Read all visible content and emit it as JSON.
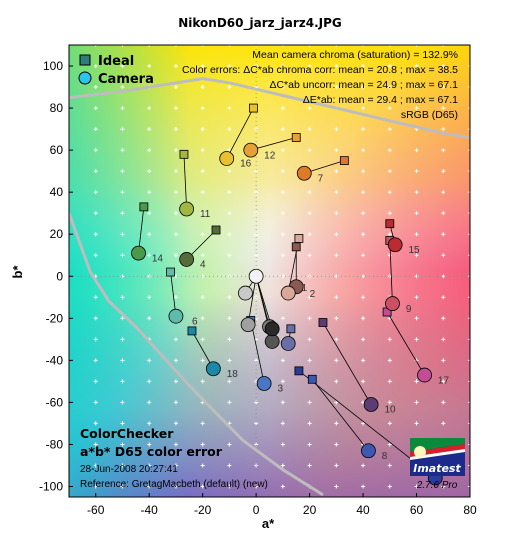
{
  "window_title": "NikonD60_jarz_jarz4.JPG",
  "info_lines": [
    "Mean camera chroma (saturation) = 132.9%",
    "Color errors:  ΔC*ab chroma corr:  mean = 20.8 ;  max = 38.5",
    "ΔC*ab uncorr:  mean = 24.9 ;  max = 67.1",
    "ΔE*ab:  mean = 29.4 ;  max = 67.1",
    "sRGB (D65)"
  ],
  "legend": {
    "ideal": "Ideal",
    "camera": "Camera"
  },
  "bottom_text": {
    "title1": "ColorChecker",
    "title2": "a*b* D65 color error",
    "date": "28-Jun-2008 20:27:41",
    "reference": "Reference: GretagMacbeth (default) (new)"
  },
  "logo": {
    "brand": "Imatest",
    "version": "2.7.6  Pro"
  },
  "colors": {
    "ideal_marker": "#2e7d7a",
    "camera_marker": "#29c4f0",
    "gamut_line": "#bdbdbd",
    "plus_marks": "#ffffff"
  },
  "chart_data": {
    "type": "scatter",
    "title": "NikonD60_jarz_jarz4.JPG",
    "xlabel": "a*",
    "ylabel": "b*",
    "xlim": [
      -70,
      80
    ],
    "ylim": [
      -105,
      110
    ],
    "xticks": [
      -60,
      -40,
      -20,
      0,
      20,
      40,
      60,
      80
    ],
    "yticks": [
      -100,
      -80,
      -60,
      -40,
      -20,
      0,
      20,
      40,
      60,
      80,
      100
    ],
    "grid": true,
    "legend_position": "top-left",
    "series": [
      {
        "name": "Ideal",
        "marker": "square"
      },
      {
        "name": "Camera",
        "marker": "circle"
      }
    ],
    "points": [
      {
        "id": 1,
        "ideal": [
          15,
          14
        ],
        "camera": [
          15,
          -5
        ],
        "color": "#8a5a52"
      },
      {
        "id": 2,
        "ideal": [
          16,
          18
        ],
        "camera": [
          12,
          -8
        ],
        "color": "#d8a898"
      },
      {
        "id": 3,
        "ideal": [
          -2,
          -21
        ],
        "camera": [
          3,
          -51
        ],
        "color": "#4a76c4"
      },
      {
        "id": 4,
        "ideal": [
          -15,
          22
        ],
        "camera": [
          -26,
          8
        ],
        "color": "#566b3a"
      },
      {
        "id": 5,
        "ideal": [
          13,
          -25
        ],
        "camera": [
          12,
          -32
        ],
        "color": "#6a6ea6"
      },
      {
        "id": 6,
        "ideal": [
          -32,
          2
        ],
        "camera": [
          -30,
          -19
        ],
        "color": "#5fbcaa"
      },
      {
        "id": 7,
        "ideal": [
          33,
          55
        ],
        "camera": [
          18,
          49
        ],
        "color": "#dc7a28"
      },
      {
        "id": 8,
        "ideal": [
          21,
          -49
        ],
        "camera": [
          42,
          -83
        ],
        "color": "#3e58b0"
      },
      {
        "id": 9,
        "ideal": [
          50,
          17
        ],
        "camera": [
          51,
          -13
        ],
        "color": "#cc5064"
      },
      {
        "id": 10,
        "ideal": [
          25,
          -22
        ],
        "camera": [
          43,
          -61
        ],
        "color": "#5e3c72"
      },
      {
        "id": 11,
        "ideal": [
          -27,
          58
        ],
        "camera": [
          -26,
          32
        ],
        "color": "#a2b642"
      },
      {
        "id": 12,
        "ideal": [
          15,
          66
        ],
        "camera": [
          -2,
          60
        ],
        "color": "#e6a03a"
      },
      {
        "id": 13,
        "ideal": [
          16,
          -45
        ],
        "camera": [
          67,
          -96
        ],
        "color": "#2a3c98"
      },
      {
        "id": 14,
        "ideal": [
          -42,
          33
        ],
        "camera": [
          -44,
          11
        ],
        "color": "#4a9a4a"
      },
      {
        "id": 15,
        "ideal": [
          50,
          25
        ],
        "camera": [
          52,
          15
        ],
        "color": "#b82c34"
      },
      {
        "id": 16,
        "ideal": [
          -1,
          80
        ],
        "camera": [
          -11,
          56
        ],
        "color": "#e8c030"
      },
      {
        "id": 17,
        "ideal": [
          49,
          -17
        ],
        "camera": [
          63,
          -47
        ],
        "color": "#c24c96"
      },
      {
        "id": 18,
        "ideal": [
          -24,
          -26
        ],
        "camera": [
          -16,
          -44
        ],
        "color": "#1a88a6"
      },
      {
        "id": 19,
        "ideal": [
          0,
          0
        ],
        "camera": [
          0,
          0
        ],
        "color": "#f2f2f2"
      },
      {
        "id": 20,
        "ideal": [
          0,
          0
        ],
        "camera": [
          -4,
          -8
        ],
        "color": "#c8c8c8"
      },
      {
        "id": 21,
        "ideal": [
          0,
          0
        ],
        "camera": [
          -3,
          -23
        ],
        "color": "#a0a0a0"
      },
      {
        "id": 22,
        "ideal": [
          0,
          0
        ],
        "camera": [
          5,
          -24
        ],
        "color": "#7a7a7a"
      },
      {
        "id": 23,
        "ideal": [
          0,
          0
        ],
        "camera": [
          6,
          -31
        ],
        "color": "#555555"
      },
      {
        "id": 24,
        "ideal": [
          0,
          0
        ],
        "camera": [
          6,
          -25
        ],
        "color": "#2a2a2a"
      }
    ],
    "point_labels": [
      {
        "text": "1",
        "at": [
          17,
          -5
        ]
      },
      {
        "text": "2",
        "at": [
          20,
          -8
        ]
      },
      {
        "text": "3",
        "at": [
          8,
          -53
        ]
      },
      {
        "text": "4",
        "at": [
          -21,
          6
        ]
      },
      {
        "text": "6",
        "at": [
          -24,
          -21
        ]
      },
      {
        "text": "7",
        "at": [
          23,
          47
        ]
      },
      {
        "text": "8",
        "at": [
          47,
          -85
        ]
      },
      {
        "text": "9",
        "at": [
          56,
          -15
        ]
      },
      {
        "text": "10",
        "at": [
          48,
          -63
        ]
      },
      {
        "text": "11",
        "at": [
          -21,
          30
        ]
      },
      {
        "text": "12",
        "at": [
          3,
          58
        ]
      },
      {
        "text": "14",
        "at": [
          -39,
          9
        ]
      },
      {
        "text": "15",
        "at": [
          57,
          13
        ]
      },
      {
        "text": "16",
        "at": [
          -6,
          54
        ]
      },
      {
        "text": "17",
        "at": [
          68,
          -49
        ]
      },
      {
        "text": "18",
        "at": [
          -11,
          -46
        ]
      }
    ]
  }
}
